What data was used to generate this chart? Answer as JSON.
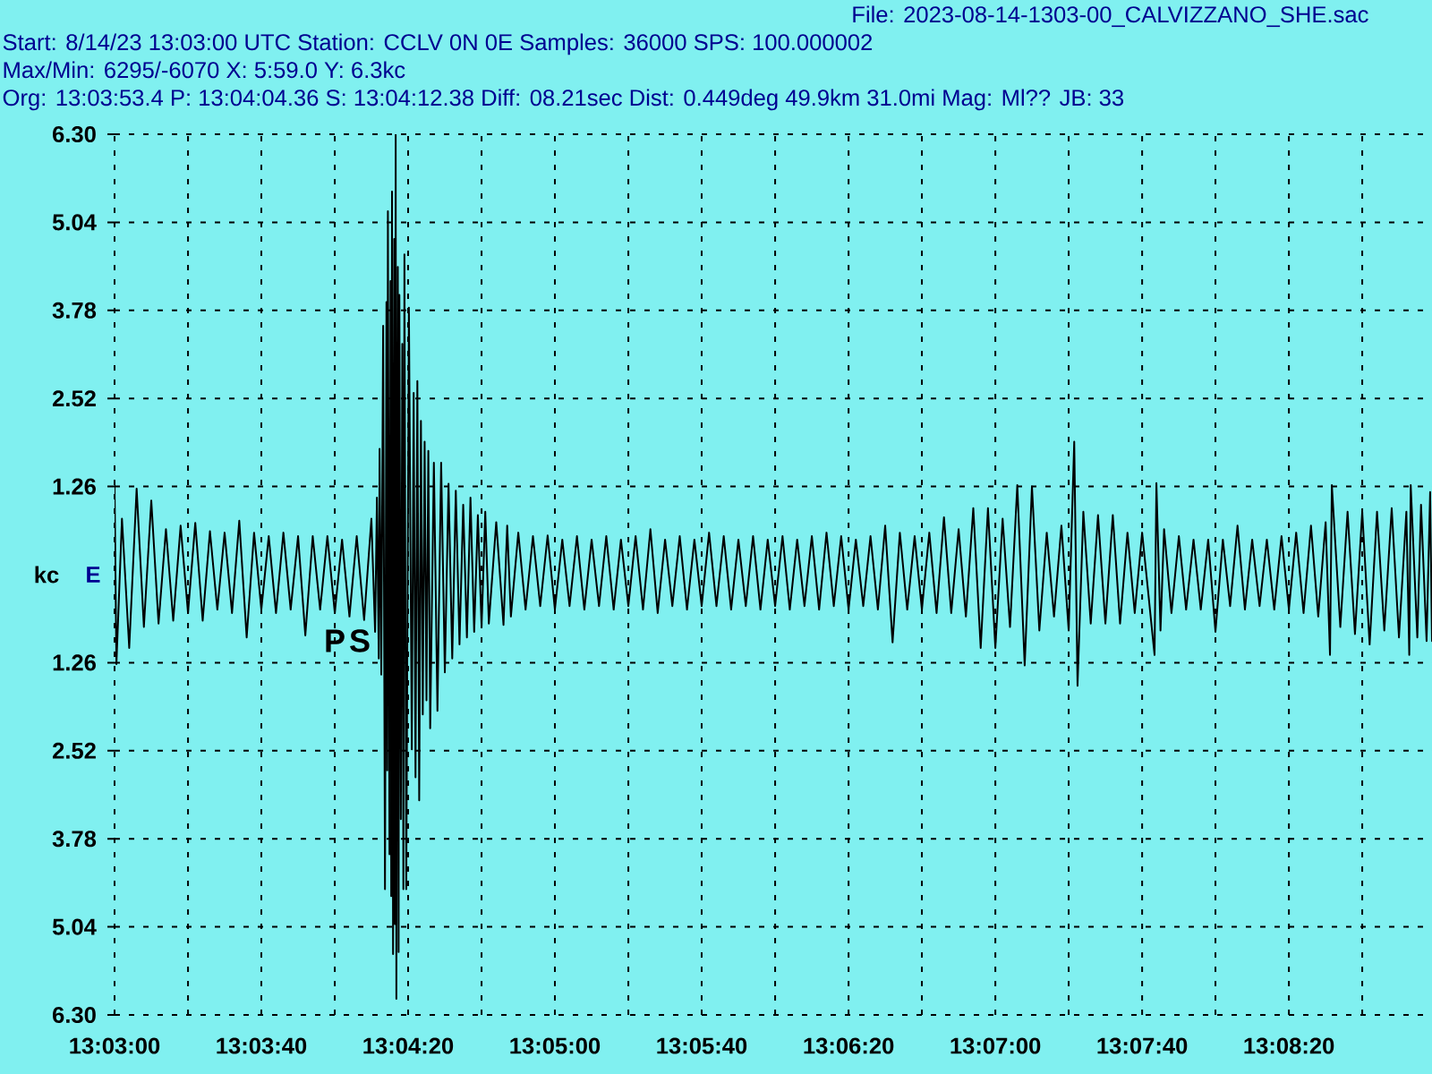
{
  "chart_data": {
    "type": "line",
    "title": "File: 2023-08-14-1303-00_CALVIZZANO_SHE.sac",
    "subtitle": "Start: 8/14/23 13:03:00 UTC Station: CCLV 0N 0E Samples: 36000 SPS: 100.000002",
    "ylabel": "kc",
    "annotations": [
      "Max/Min: 6295/-6070 X: 5:59.0 Y: 6.3kc",
      "Org: 13:03:53.4 P: 13:04:04.36 S: 13:04:12.38 Diff: 08.21sec Dist: 0.449deg 49.9km 31.0mi Mag: Ml?? JB: 33",
      "E",
      "P",
      "S"
    ],
    "x": [
      13.05,
      13.05014,
      13.05056,
      13.05111,
      13.05167,
      13.05222,
      13.05278,
      13.05333,
      13.05389,
      13.05444,
      13.055,
      13.05556,
      13.05611,
      13.05667,
      13.05722,
      13.05778,
      13.05833,
      13.05889,
      13.05944,
      13.06,
      13.06056,
      13.06111,
      13.06167,
      13.06222,
      13.06278,
      13.06333,
      13.06389,
      13.06444,
      13.065,
      13.06556,
      13.06611,
      13.06667,
      13.06722,
      13.06778,
      13.06833,
      13.06889,
      13.06944,
      13.06972,
      13.06986,
      13.07,
      13.07006,
      13.07019,
      13.07033,
      13.07047,
      13.07058,
      13.07064,
      13.07069,
      13.07081,
      13.07089,
      13.07094,
      13.071,
      13.07108,
      13.07117,
      13.07122,
      13.07128,
      13.07133,
      13.07144,
      13.0715,
      13.07156,
      13.07167,
      13.07178,
      13.07186,
      13.07194,
      13.07208,
      13.07228,
      13.0725,
      13.07264,
      13.07278,
      13.07292,
      13.07306,
      13.07319,
      13.07333,
      13.07347,
      13.07361,
      13.07375,
      13.07389,
      13.07417,
      13.07444,
      13.07472,
      13.075,
      13.07528,
      13.07556,
      13.07583,
      13.07611,
      13.07639,
      13.07667,
      13.07694,
      13.07722,
      13.0775,
      13.07778,
      13.07806,
      13.07833,
      13.07889,
      13.07944,
      13.07972,
      13.08,
      13.08056,
      13.08111,
      13.08167,
      13.08222,
      13.08278,
      13.08333,
      13.08389,
      13.08444,
      13.085,
      13.08556,
      13.08611,
      13.08667,
      13.08722,
      13.08778,
      13.08833,
      13.08889,
      13.08944,
      13.09,
      13.09056,
      13.09111,
      13.09167,
      13.09222,
      13.09278,
      13.09333,
      13.09389,
      13.09444,
      13.095,
      13.09556,
      13.09611,
      13.09667,
      13.09722,
      13.09778,
      13.09833,
      13.09889,
      13.09944,
      13.1,
      13.10056,
      13.10111,
      13.10167,
      13.10222,
      13.10278,
      13.10333,
      13.10389,
      13.10444,
      13.105,
      13.10556,
      13.10611,
      13.10667,
      13.10722,
      13.10778,
      13.10833,
      13.10889,
      13.10944,
      13.11,
      13.11056,
      13.11111,
      13.11167,
      13.11222,
      13.11278,
      13.11333,
      13.11389,
      13.11444,
      13.115,
      13.11556,
      13.11611,
      13.11667,
      13.11722,
      13.11778,
      13.11833,
      13.11889,
      13.11944,
      13.12,
      13.12056,
      13.12111,
      13.12167,
      13.12222,
      13.12264,
      13.12289,
      13.12333,
      13.12389,
      13.12444,
      13.125,
      13.12556,
      13.12611,
      13.12667,
      13.12722,
      13.12778,
      13.12872,
      13.12886,
      13.12917,
      13.12944,
      13.13,
      13.13056,
      13.13111,
      13.13167,
      13.13222,
      13.13278,
      13.13333,
      13.13389,
      13.13444,
      13.135,
      13.13556,
      13.13611,
      13.13667,
      13.13722,
      13.13778,
      13.13833,
      13.13889,
      13.13944,
      13.14,
      13.14056,
      13.14111,
      13.14167,
      13.142,
      13.14214,
      13.14278,
      13.14333,
      13.14389,
      13.14444,
      13.145,
      13.14556,
      13.14611,
      13.14667,
      13.14722,
      13.14778,
      13.148,
      13.14811,
      13.14861,
      13.14889,
      13.14931,
      13.14958,
      13.14972
    ],
    "series": [
      {
        "color": "#000000",
        "values": [
          1.3,
          -1.28,
          0.8,
          -1.05,
          1.23,
          -0.75,
          1.06,
          -0.7,
          0.65,
          -0.66,
          0.7,
          -0.55,
          0.74,
          -0.66,
          0.62,
          -0.5,
          0.6,
          -0.55,
          0.77,
          -0.9,
          0.6,
          -0.5,
          0.55,
          -0.55,
          0.6,
          -0.5,
          0.55,
          -0.87,
          0.55,
          -0.5,
          0.55,
          -0.55,
          0.5,
          -0.6,
          0.55,
          -0.65,
          0.8,
          -0.82,
          1.1,
          -1.2,
          1.8,
          -1.43,
          3.56,
          -4.5,
          3.9,
          -2.8,
          5.2,
          -4.0,
          4.2,
          -4.6,
          5.48,
          -5.43,
          4.8,
          -5.0,
          6.3,
          -6.07,
          4.4,
          -5.4,
          4.0,
          -3.5,
          3.3,
          -4.5,
          4.58,
          -4.5,
          3.82,
          -2.5,
          2.6,
          -2.9,
          2.77,
          -3.23,
          2.2,
          -2.0,
          1.9,
          -1.8,
          1.77,
          -2.2,
          1.6,
          -1.95,
          1.6,
          -1.4,
          1.3,
          -1.2,
          1.2,
          -1.0,
          1.0,
          -0.9,
          1.1,
          -0.82,
          0.85,
          -0.75,
          0.9,
          -0.7,
          0.75,
          -0.72,
          0.7,
          -0.6,
          0.6,
          -0.5,
          0.55,
          -0.45,
          0.56,
          -0.5,
          0.5,
          -0.45,
          0.55,
          -0.5,
          0.5,
          -0.45,
          0.55,
          -0.5,
          0.5,
          -0.45,
          0.55,
          -0.5,
          0.65,
          -0.55,
          0.5,
          -0.45,
          0.55,
          -0.5,
          0.5,
          -0.45,
          0.6,
          -0.45,
          0.55,
          -0.5,
          0.5,
          -0.45,
          0.55,
          -0.5,
          0.5,
          -0.45,
          0.55,
          -0.5,
          0.5,
          -0.45,
          0.55,
          -0.5,
          0.6,
          -0.45,
          0.55,
          -0.5,
          0.5,
          -0.45,
          0.55,
          -0.5,
          0.7,
          -0.97,
          0.6,
          -0.5,
          0.55,
          -0.5,
          0.6,
          -0.55,
          0.82,
          -0.55,
          0.65,
          -0.6,
          0.95,
          -1.05,
          0.95,
          -1.05,
          0.8,
          -0.75,
          1.28,
          -1.3,
          1.26,
          -0.8,
          0.6,
          -0.6,
          0.7,
          -0.8,
          1.9,
          -1.59,
          0.9,
          -0.7,
          0.85,
          -0.7,
          0.85,
          -0.7,
          0.6,
          -0.55,
          0.6,
          -1.15,
          1.31,
          -0.8,
          0.65,
          -0.55,
          0.55,
          -0.5,
          0.5,
          -0.5,
          0.5,
          -0.82,
          0.5,
          -0.45,
          0.7,
          -0.5,
          0.5,
          -0.45,
          0.5,
          -0.5,
          0.55,
          -0.5,
          0.6,
          -0.55,
          0.7,
          -0.6,
          0.75,
          -1.15,
          1.28,
          -0.75,
          0.9,
          -0.85,
          0.9,
          -1.0,
          0.9,
          -0.8,
          0.95,
          -0.9,
          0.9,
          -1.15,
          1.28,
          -0.9,
          1.0,
          -0.95,
          1.18,
          -0.95
        ]
      }
    ],
    "xlim": [
      13.05,
      13.14972
    ],
    "ylim": [
      -6.3,
      6.3
    ],
    "xticks": [
      {
        "value": 13.05,
        "label": "13:03:00"
      },
      {
        "value": 13.05556,
        "label": null
      },
      {
        "value": 13.06111,
        "label": "13:03:40"
      },
      {
        "value": 13.06667,
        "label": null
      },
      {
        "value": 13.07222,
        "label": "13:04:20"
      },
      {
        "value": 13.07778,
        "label": null
      },
      {
        "value": 13.08333,
        "label": "13:05:00"
      },
      {
        "value": 13.08889,
        "label": null
      },
      {
        "value": 13.09444,
        "label": "13:05:40"
      },
      {
        "value": 13.1,
        "label": null
      },
      {
        "value": 13.10556,
        "label": "13:06:20"
      },
      {
        "value": 13.11111,
        "label": null
      },
      {
        "value": 13.11667,
        "label": "13:07:00"
      },
      {
        "value": 13.12222,
        "label": null
      },
      {
        "value": 13.12778,
        "label": "13:07:40"
      },
      {
        "value": 13.13333,
        "label": null
      },
      {
        "value": 13.13889,
        "label": "13:08:20"
      },
      {
        "value": 13.14444,
        "label": null
      }
    ],
    "yticks": [
      {
        "value": 6.3,
        "label": "6.30"
      },
      5.04,
      3.78,
      2.52,
      1.26,
      {
        "value": -1.26,
        "label": "1.26"
      },
      {
        "value": -2.52,
        "label": "2.52"
      },
      {
        "value": -3.78,
        "label": "3.78"
      },
      {
        "value": -5.04,
        "label": "5.04"
      },
      {
        "value": -6.3,
        "label": "6.30"
      }
    ],
    "grid": true
  }
}
